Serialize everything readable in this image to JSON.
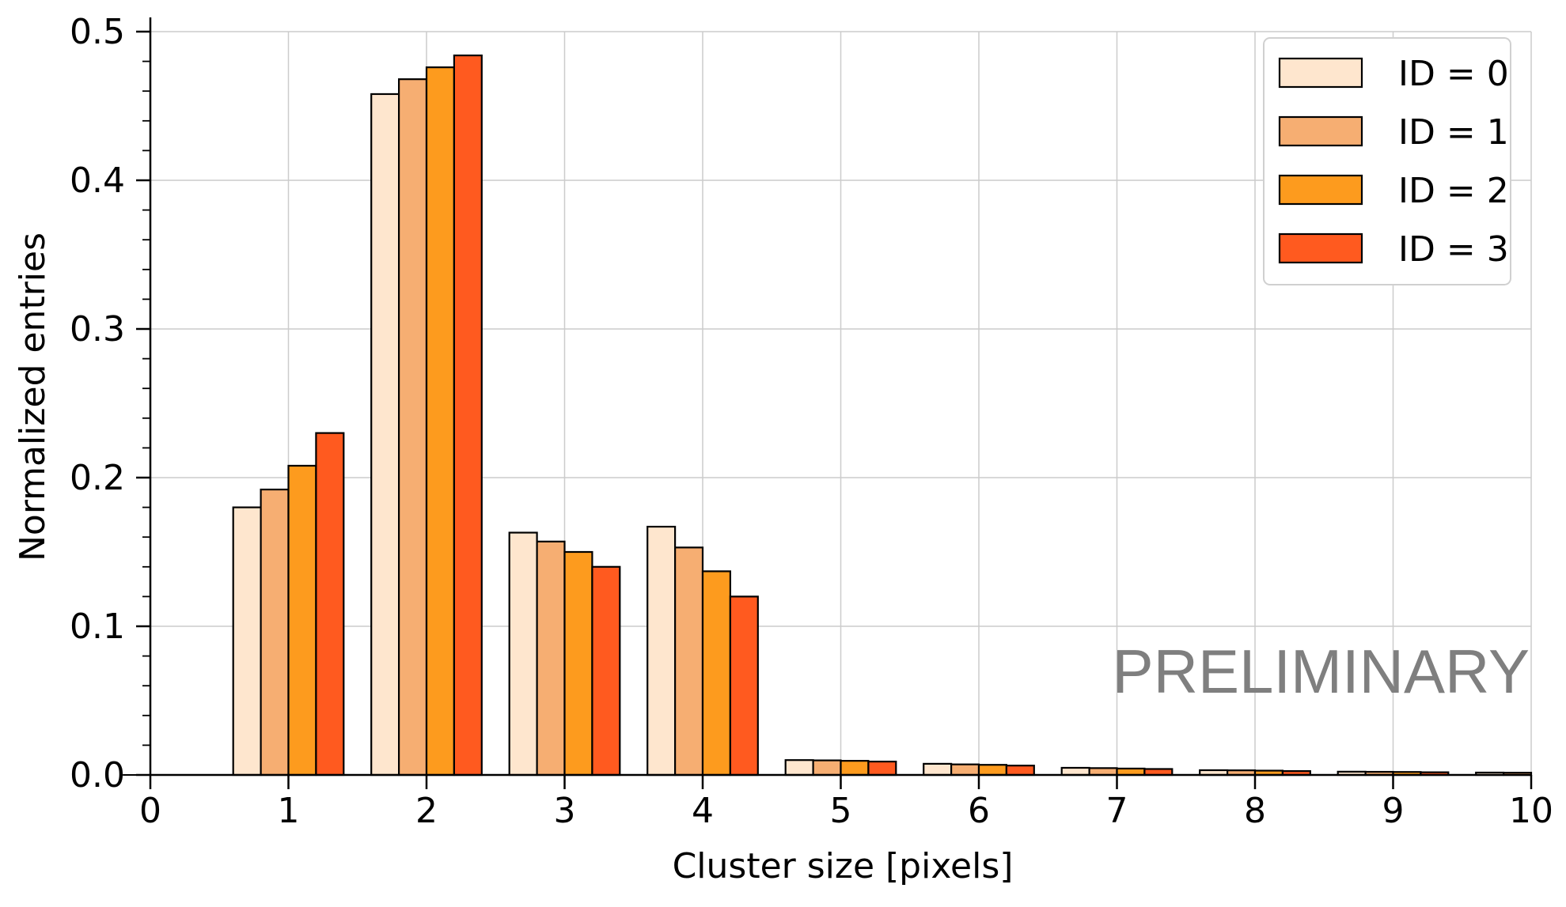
{
  "chart_data": {
    "type": "bar",
    "xlabel": "Cluster size [pixels]",
    "ylabel": "Normalized entries",
    "xlim": [
      0,
      10
    ],
    "ylim": [
      0,
      0.5
    ],
    "xticks": [
      "0",
      "1",
      "2",
      "3",
      "4",
      "5",
      "6",
      "7",
      "8",
      "9",
      "10"
    ],
    "yticks": [
      "0.0",
      "0.1",
      "0.2",
      "0.3",
      "0.4",
      "0.5"
    ],
    "grid": true,
    "legend_position": "top-right",
    "categories": [
      0,
      1,
      2,
      3,
      4,
      5,
      6,
      7,
      8,
      9,
      10
    ],
    "series": [
      {
        "name": "ID = 0",
        "color": "#FEE6CE",
        "values": [
          0.0,
          0.18,
          0.458,
          0.163,
          0.167,
          0.01,
          0.0075,
          0.0048,
          0.0032,
          0.0022,
          0.0016
        ]
      },
      {
        "name": "ID = 1",
        "color": "#F6AE72",
        "values": [
          0.0,
          0.192,
          0.468,
          0.157,
          0.153,
          0.0098,
          0.0071,
          0.0046,
          0.0031,
          0.0021,
          0.0015
        ]
      },
      {
        "name": "ID = 2",
        "color": "#FD9B1E",
        "values": [
          0.0,
          0.208,
          0.476,
          0.15,
          0.137,
          0.0095,
          0.0068,
          0.0043,
          0.0029,
          0.002,
          0.0014
        ]
      },
      {
        "name": "ID = 3",
        "color": "#FF5A1F",
        "values": [
          0.0,
          0.23,
          0.484,
          0.14,
          0.12,
          0.009,
          0.0063,
          0.004,
          0.0026,
          0.0018,
          0.0013
        ]
      }
    ],
    "annotations": [
      "PRELIMINARY"
    ]
  }
}
